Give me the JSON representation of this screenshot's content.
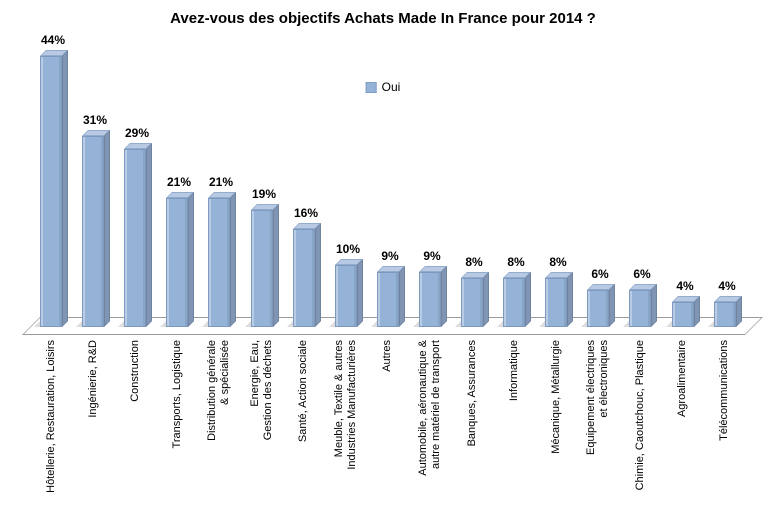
{
  "chart_data": {
    "type": "bar",
    "style": "3d-column",
    "title": "Avez-vous des objectifs Achats Made In France pour 2014 ?",
    "xlabel": "",
    "ylabel": "",
    "ylim": [
      0,
      50
    ],
    "grid": false,
    "axes_visible": false,
    "legend_position": "top-center",
    "value_label_format": "percent",
    "series": [
      {
        "name": "Oui",
        "color": "#95B3D7",
        "values": [
          44,
          31,
          29,
          21,
          21,
          19,
          16,
          10,
          9,
          9,
          8,
          8,
          8,
          6,
          6,
          4,
          4
        ]
      }
    ],
    "categories": [
      "Hôtellerie, Restauration, Loisirs",
      "Ingénierie, R&D",
      "Construction",
      "Transports, Logistique",
      "Distribution générale\n& spécialisée",
      "Energie, Eau,\nGestion des déchets",
      "Santé, Action sociale",
      "Meuble, Textile & autres\nIndustries Manufacturières",
      "Autres",
      "Automobile, aéronautique &\nautre matériel de transport",
      "Banques, Assurances",
      "Informatique",
      "Mécanique, Métallurgie",
      "Equipement électriques\net électroniques",
      "Chimie, Caoutchouc, Plastique",
      "Agroalimentaire",
      "Télécommunications"
    ],
    "value_labels": [
      "44%",
      "31%",
      "29%",
      "21%",
      "21%",
      "19%",
      "16%",
      "10%",
      "9%",
      "9%",
      "8%",
      "8%",
      "8%",
      "6%",
      "6%",
      "4%",
      "4%"
    ]
  },
  "colors": {
    "bar_front": "#95B3D7",
    "bar_top": "#B7C9E3",
    "bar_side": "#8095B3",
    "floor_border": "#9B9B9B",
    "text": "#000000"
  }
}
